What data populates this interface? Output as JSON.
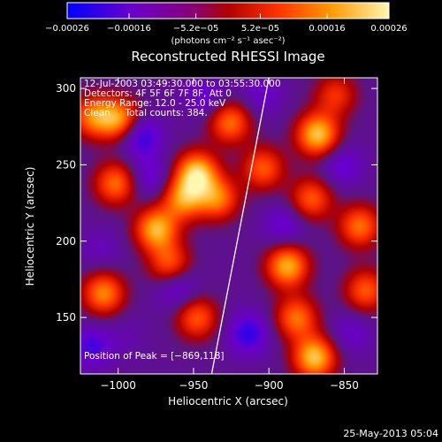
{
  "chart_data": {
    "type": "heatmap",
    "title": "Reconstructed RHESSI Image",
    "xlabel": "Heliocentric X (arcsec)",
    "ylabel": "Heliocentric Y (arcsec)",
    "xlim": [
      -1025,
      -828
    ],
    "ylim": [
      113,
      307
    ],
    "x_ticks": [
      -1000,
      -950,
      -900,
      -850
    ],
    "x_tick_labels": [
      "−1000",
      "−950",
      "−900",
      "−850"
    ],
    "y_ticks": [
      150,
      200,
      250,
      300
    ],
    "y_tick_labels": [
      "150",
      "200",
      "250",
      "300"
    ],
    "colorbar": {
      "range": [
        -0.00026,
        0.00026
      ],
      "ticks": [
        -0.00026,
        -0.00016,
        -5.2e-05,
        5.2e-05,
        0.00016,
        0.00026
      ],
      "tick_labels": [
        "−0.00026",
        "−0.00016",
        "−5.2e−05",
        "5.2e−05",
        "0.00016",
        "0.00026"
      ],
      "units": "(photons cm⁻² s⁻¹ asec⁻²)",
      "colors": [
        "#0000ff",
        "#7c00c8",
        "#b00000",
        "#ff3000",
        "#ff9a00",
        "#fff6b0"
      ]
    },
    "annotations": [
      "12-Jul-2003 03:49:30.000 to 03:55:30.000",
      "Detectors: 4F 5F 6F 7F 8F, Att 0",
      "Energy Range: 12.0 - 25.0 keV",
      "Clean     Total counts: 384."
    ],
    "peak": {
      "label": "Position of Peak = [−869,118]",
      "x": -869,
      "y": 118
    },
    "limb_line": [
      [
        -938,
        113
      ],
      [
        -900,
        307
      ]
    ],
    "sources": [
      {
        "x": -999,
        "y": 280,
        "value": 0.00022
      },
      {
        "x": -1017,
        "y": 282,
        "value": 0.00018
      },
      {
        "x": -1002,
        "y": 238,
        "value": 0.00018
      },
      {
        "x": -1010,
        "y": 166,
        "value": 0.0002
      },
      {
        "x": -975,
        "y": 208,
        "value": 0.00024
      },
      {
        "x": -966,
        "y": 185,
        "value": 0.00016
      },
      {
        "x": -948,
        "y": 245,
        "value": 0.00026
      },
      {
        "x": -957,
        "y": 228,
        "value": 0.0002
      },
      {
        "x": -934,
        "y": 228,
        "value": 0.00018
      },
      {
        "x": -948,
        "y": 150,
        "value": 0.00016
      },
      {
        "x": -926,
        "y": 278,
        "value": 0.00018
      },
      {
        "x": -904,
        "y": 248,
        "value": 0.00016
      },
      {
        "x": -888,
        "y": 184,
        "value": 0.00024
      },
      {
        "x": -882,
        "y": 150,
        "value": 0.00018
      },
      {
        "x": -870,
        "y": 124,
        "value": 0.00026
      },
      {
        "x": -868,
        "y": 270,
        "value": 0.00026
      },
      {
        "x": -872,
        "y": 228,
        "value": 0.00016
      },
      {
        "x": -840,
        "y": 210,
        "value": 0.00018
      },
      {
        "x": -836,
        "y": 168,
        "value": 0.00016
      },
      {
        "x": -856,
        "y": 296,
        "value": 0.00012
      },
      {
        "x": -986,
        "y": 270,
        "value": -0.00018
      },
      {
        "x": -979,
        "y": 242,
        "value": -0.00012
      },
      {
        "x": -942,
        "y": 296,
        "value": -0.00012
      },
      {
        "x": -961,
        "y": 170,
        "value": -0.00014
      },
      {
        "x": -1012,
        "y": 195,
        "value": -8e-05
      },
      {
        "x": -1018,
        "y": 131,
        "value": -0.00014
      },
      {
        "x": -914,
        "y": 140,
        "value": -0.00016
      },
      {
        "x": -890,
        "y": 210,
        "value": -0.00012
      },
      {
        "x": -852,
        "y": 250,
        "value": -0.00012
      },
      {
        "x": -846,
        "y": 140,
        "value": -0.0001
      },
      {
        "x": -905,
        "y": 296,
        "value": -0.0001
      },
      {
        "x": -995,
        "y": 138,
        "value": -6e-05
      }
    ]
  },
  "footer": {
    "date": "25-May-2013 05:04"
  }
}
